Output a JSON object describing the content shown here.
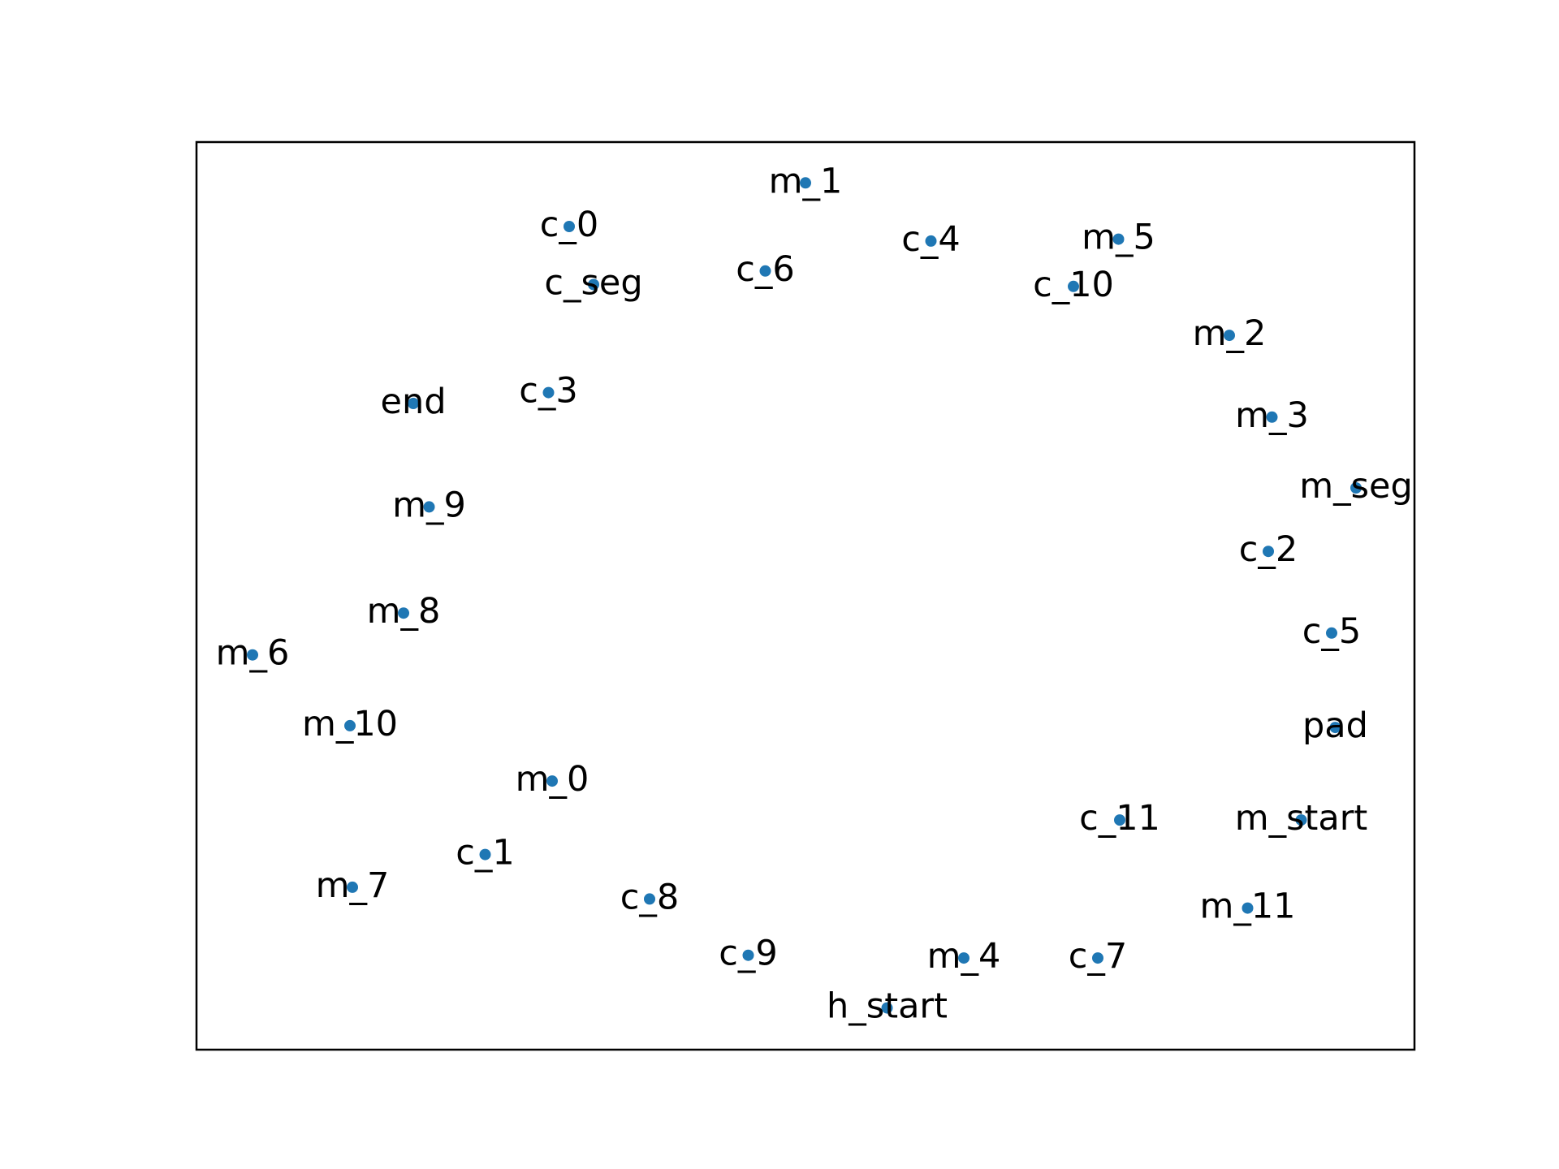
{
  "chart_data": {
    "type": "scatter",
    "title": "",
    "xlabel": "",
    "ylabel": "",
    "xlim": [
      0,
      1
    ],
    "ylim": [
      0,
      1
    ],
    "grid": false,
    "axis_ticks": false,
    "marker_color": "#1f77b4",
    "points": [
      {
        "label": "m_1",
        "x": 0.5,
        "y": 0.955
      },
      {
        "label": "c_0",
        "x": 0.306,
        "y": 0.907
      },
      {
        "label": "c_4",
        "x": 0.603,
        "y": 0.891
      },
      {
        "label": "m_5",
        "x": 0.757,
        "y": 0.893
      },
      {
        "label": "c_6",
        "x": 0.467,
        "y": 0.858
      },
      {
        "label": "c_seg",
        "x": 0.326,
        "y": 0.843
      },
      {
        "label": "c_10",
        "x": 0.72,
        "y": 0.841
      },
      {
        "label": "m_2",
        "x": 0.848,
        "y": 0.787
      },
      {
        "label": "c_3",
        "x": 0.289,
        "y": 0.724
      },
      {
        "label": "end",
        "x": 0.178,
        "y": 0.712
      },
      {
        "label": "m_3",
        "x": 0.883,
        "y": 0.697
      },
      {
        "label": "m_seg",
        "x": 0.952,
        "y": 0.619
      },
      {
        "label": "m_9",
        "x": 0.191,
        "y": 0.598
      },
      {
        "label": "c_2",
        "x": 0.88,
        "y": 0.549
      },
      {
        "label": "m_8",
        "x": 0.17,
        "y": 0.481
      },
      {
        "label": "m_6",
        "x": 0.046,
        "y": 0.435
      },
      {
        "label": "c_5",
        "x": 0.932,
        "y": 0.459
      },
      {
        "label": "pad",
        "x": 0.935,
        "y": 0.355
      },
      {
        "label": "m_10",
        "x": 0.126,
        "y": 0.357
      },
      {
        "label": "m_0",
        "x": 0.292,
        "y": 0.296
      },
      {
        "label": "c_11",
        "x": 0.758,
        "y": 0.253
      },
      {
        "label": "m_start",
        "x": 0.907,
        "y": 0.253
      },
      {
        "label": "c_1",
        "x": 0.237,
        "y": 0.215
      },
      {
        "label": "m_7",
        "x": 0.128,
        "y": 0.179
      },
      {
        "label": "c_8",
        "x": 0.372,
        "y": 0.166
      },
      {
        "label": "m_11",
        "x": 0.863,
        "y": 0.156
      },
      {
        "label": "c_9",
        "x": 0.453,
        "y": 0.104
      },
      {
        "label": "m_4",
        "x": 0.63,
        "y": 0.101
      },
      {
        "label": "c_7",
        "x": 0.74,
        "y": 0.101
      },
      {
        "label": "h_start",
        "x": 0.567,
        "y": 0.046
      }
    ]
  }
}
